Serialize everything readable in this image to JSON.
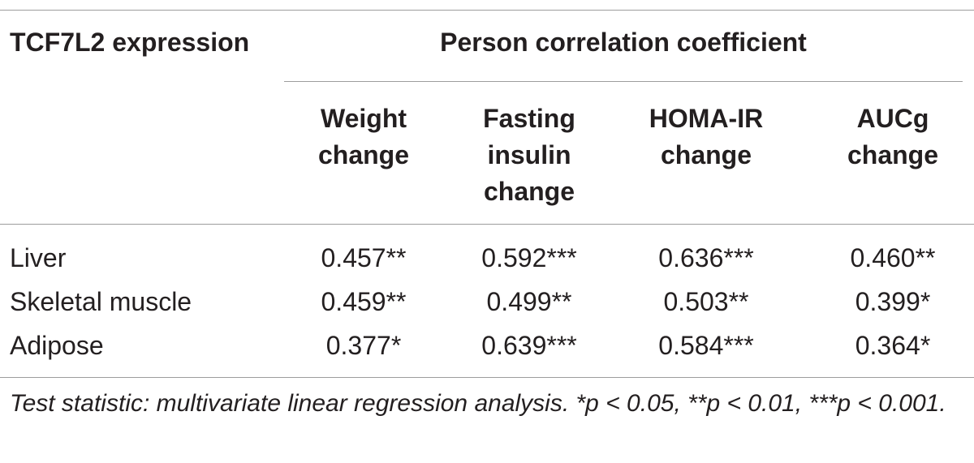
{
  "table": {
    "row_header": "TCF7L2 expression",
    "group_header": "Person correlation coefficient",
    "columns": [
      {
        "lines": [
          "Weight",
          "change"
        ]
      },
      {
        "lines": [
          "Fasting",
          "insulin",
          "change"
        ]
      },
      {
        "lines": [
          "HOMA-IR",
          "change"
        ]
      },
      {
        "lines": [
          "AUCg",
          "change"
        ]
      }
    ],
    "rows": [
      {
        "label": "Liver",
        "values": [
          "0.457**",
          "0.592***",
          "0.636***",
          "0.460**"
        ]
      },
      {
        "label": "Skeletal muscle",
        "values": [
          "0.459**",
          "0.499**",
          "0.503**",
          "0.399*"
        ]
      },
      {
        "label": "Adipose",
        "values": [
          "0.377*",
          "0.639***",
          "0.584***",
          "0.364*"
        ]
      }
    ],
    "footnote": "Test statistic: multivariate linear regression analysis. *p < 0.05, **p < 0.01, ***p < 0.001."
  },
  "colors": {
    "text": "#231f20",
    "rule": "#9d9d9d"
  }
}
